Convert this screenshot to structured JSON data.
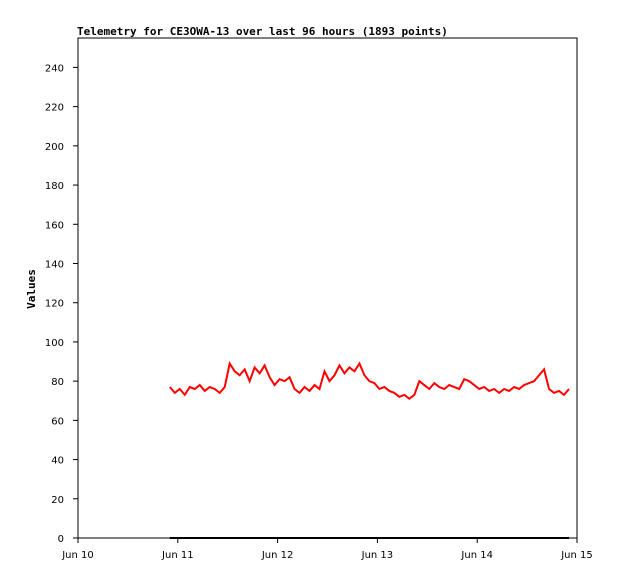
{
  "chart_data": {
    "type": "line",
    "title": "Telemetry for CE3OWA-13 over last 96 hours (1893 points)",
    "y_label": "Values",
    "xlim": [
      10,
      15
    ],
    "xticks": [
      {
        "value": 10,
        "label": "Jun 10"
      },
      {
        "value": 11,
        "label": "Jun 11"
      },
      {
        "value": 12,
        "label": "Jun 12"
      },
      {
        "value": 13,
        "label": "Jun 13"
      },
      {
        "value": 14,
        "label": "Jun 14"
      },
      {
        "value": 15,
        "label": "Jun 15"
      }
    ],
    "ylim": [
      0,
      255
    ],
    "yticks": [
      0,
      20,
      40,
      60,
      80,
      100,
      120,
      140,
      160,
      180,
      200,
      220,
      240
    ],
    "grid": false,
    "series": [
      {
        "color": "#ff0000",
        "x": [
          10.92,
          10.97,
          11.02,
          11.07,
          11.12,
          11.17,
          11.22,
          11.27,
          11.32,
          11.37,
          11.42,
          11.47,
          11.52,
          11.57,
          11.62,
          11.67,
          11.72,
          11.77,
          11.82,
          11.87,
          11.92,
          11.97,
          12.02,
          12.07,
          12.12,
          12.17,
          12.22,
          12.27,
          12.32,
          12.37,
          12.42,
          12.47,
          12.52,
          12.57,
          12.62,
          12.67,
          12.72,
          12.77,
          12.82,
          12.87,
          12.92,
          12.97,
          13.02,
          13.07,
          13.12,
          13.17,
          13.22,
          13.27,
          13.32,
          13.37,
          13.42,
          13.47,
          13.52,
          13.57,
          13.62,
          13.67,
          13.72,
          13.77,
          13.82,
          13.87,
          13.92,
          13.97,
          14.02,
          14.07,
          14.12,
          14.17,
          14.22,
          14.27,
          14.32,
          14.37,
          14.42,
          14.47,
          14.52,
          14.57,
          14.62,
          14.67,
          14.72,
          14.77,
          14.82,
          14.87,
          14.92
        ],
        "values": [
          77,
          74,
          76,
          73,
          77,
          76,
          78,
          75,
          77,
          76,
          74,
          77,
          89,
          85,
          83,
          86,
          80,
          87,
          84,
          88,
          82,
          78,
          81,
          80,
          82,
          76,
          74,
          77,
          75,
          78,
          76,
          85,
          80,
          83,
          88,
          84,
          87,
          85,
          89,
          83,
          80,
          79,
          76,
          77,
          75,
          74,
          72,
          73,
          71,
          73,
          80,
          78,
          76,
          79,
          77,
          76,
          78,
          77,
          76,
          81,
          80,
          78,
          76,
          77,
          75,
          76,
          74,
          76,
          75,
          77,
          76,
          78,
          79,
          80,
          83,
          86,
          76,
          74,
          75,
          73,
          76
        ]
      },
      {
        "color": "#000000",
        "x": [
          10.92,
          14.92
        ],
        "values": [
          0,
          0
        ]
      }
    ]
  }
}
